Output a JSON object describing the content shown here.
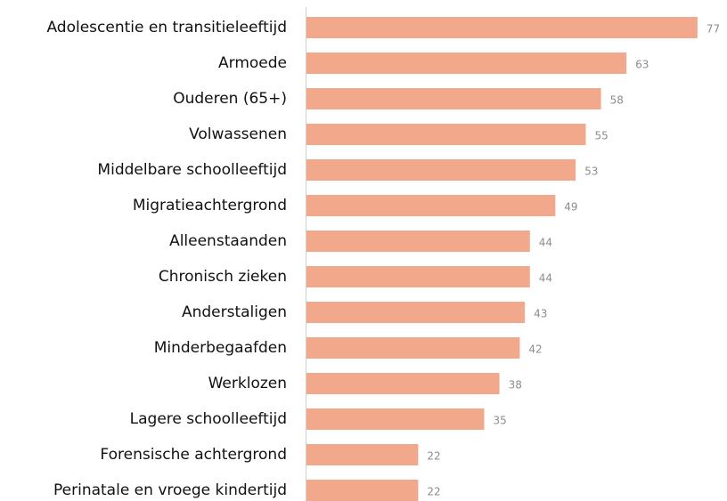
{
  "chart_data": {
    "type": "bar",
    "orientation": "horizontal",
    "categories": [
      "Adolescentie en transitieleeftijd",
      "Armoede",
      "Ouderen (65+)",
      "Volwassenen",
      "Middelbare schoolleeftijd",
      "Migratieachtergrond",
      "Alleenstaanden",
      "Chronisch zieken",
      "Anderstaligen",
      "Minderbegaafden",
      "Werklozen",
      "Lagere schoolleeftijd",
      "Forensische achtergrond",
      "Perinatale en vroege kindertijd"
    ],
    "values": [
      77,
      63,
      58,
      55,
      53,
      49,
      44,
      44,
      43,
      42,
      38,
      35,
      22,
      22
    ],
    "color": "#f2a98b"
  }
}
